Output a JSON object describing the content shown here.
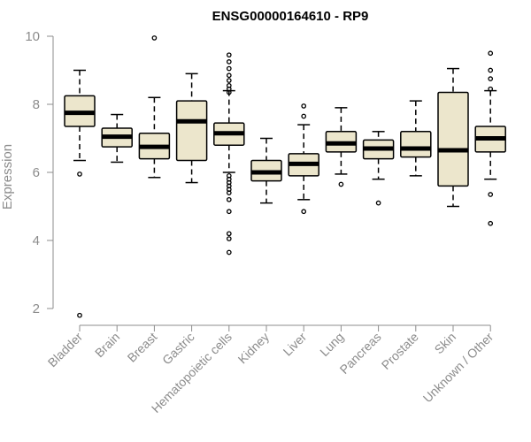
{
  "chart_data": {
    "type": "boxplot",
    "title": "ENSG00000164610 - RP9",
    "xlabel": "",
    "ylabel": "Expression",
    "ylim": [
      1.7,
      10.1
    ],
    "yticks": [
      2,
      4,
      6,
      8,
      10
    ],
    "grid": false,
    "legend": "none",
    "colors": {
      "box_fill": "#ece6cc",
      "stroke": "#000000",
      "axis_text": "#8c8c8c"
    },
    "categories": [
      "Bladder",
      "Brain",
      "Breast",
      "Gastric",
      "Hematopoietic cells",
      "Kidney",
      "Liver",
      "Lung",
      "Pancreas",
      "Prostate",
      "Skin",
      "Unknown / Other"
    ],
    "boxes": [
      {
        "category": "Bladder",
        "whisker_low": 6.35,
        "q1": 7.35,
        "median": 7.75,
        "q3": 8.25,
        "whisker_high": 9.0,
        "outliers": [
          5.95,
          1.8
        ]
      },
      {
        "category": "Brain",
        "whisker_low": 6.3,
        "q1": 6.75,
        "median": 7.05,
        "q3": 7.3,
        "whisker_high": 7.7,
        "outliers": []
      },
      {
        "category": "Breast",
        "whisker_low": 5.85,
        "q1": 6.4,
        "median": 6.75,
        "q3": 7.15,
        "whisker_high": 8.2,
        "outliers": [
          9.95
        ]
      },
      {
        "category": "Gastric",
        "whisker_low": 5.7,
        "q1": 6.35,
        "median": 7.5,
        "q3": 8.1,
        "whisker_high": 8.9,
        "outliers": []
      },
      {
        "category": "Hematopoietic cells",
        "whisker_low": 6.0,
        "q1": 6.8,
        "median": 7.15,
        "q3": 7.45,
        "whisker_high": 8.4,
        "outliers": [
          9.45,
          9.25,
          9.05,
          8.85,
          8.7,
          8.55,
          8.45,
          8.35,
          5.9,
          5.8,
          5.7,
          5.6,
          5.5,
          5.4,
          5.2,
          4.85,
          4.2,
          4.05,
          3.65
        ]
      },
      {
        "category": "Kidney",
        "whisker_low": 5.1,
        "q1": 5.75,
        "median": 6.0,
        "q3": 6.35,
        "whisker_high": 7.0,
        "outliers": []
      },
      {
        "category": "Liver",
        "whisker_low": 5.2,
        "q1": 5.9,
        "median": 6.25,
        "q3": 6.55,
        "whisker_high": 7.4,
        "outliers": [
          7.95,
          7.65,
          4.85
        ]
      },
      {
        "category": "Lung",
        "whisker_low": 5.95,
        "q1": 6.6,
        "median": 6.85,
        "q3": 7.2,
        "whisker_high": 7.9,
        "outliers": [
          5.65
        ]
      },
      {
        "category": "Pancreas",
        "whisker_low": 5.8,
        "q1": 6.4,
        "median": 6.7,
        "q3": 6.95,
        "whisker_high": 7.2,
        "outliers": [
          5.1
        ]
      },
      {
        "category": "Prostate",
        "whisker_low": 5.9,
        "q1": 6.45,
        "median": 6.7,
        "q3": 7.2,
        "whisker_high": 8.1,
        "outliers": []
      },
      {
        "category": "Skin",
        "whisker_low": 5.0,
        "q1": 5.6,
        "median": 6.65,
        "q3": 8.35,
        "whisker_high": 9.05,
        "outliers": []
      },
      {
        "category": "Unknown / Other",
        "whisker_low": 5.8,
        "q1": 6.6,
        "median": 7.0,
        "q3": 7.35,
        "whisker_high": 8.4,
        "outliers": [
          9.5,
          9.0,
          8.75,
          8.45,
          5.35,
          4.5
        ]
      }
    ]
  }
}
